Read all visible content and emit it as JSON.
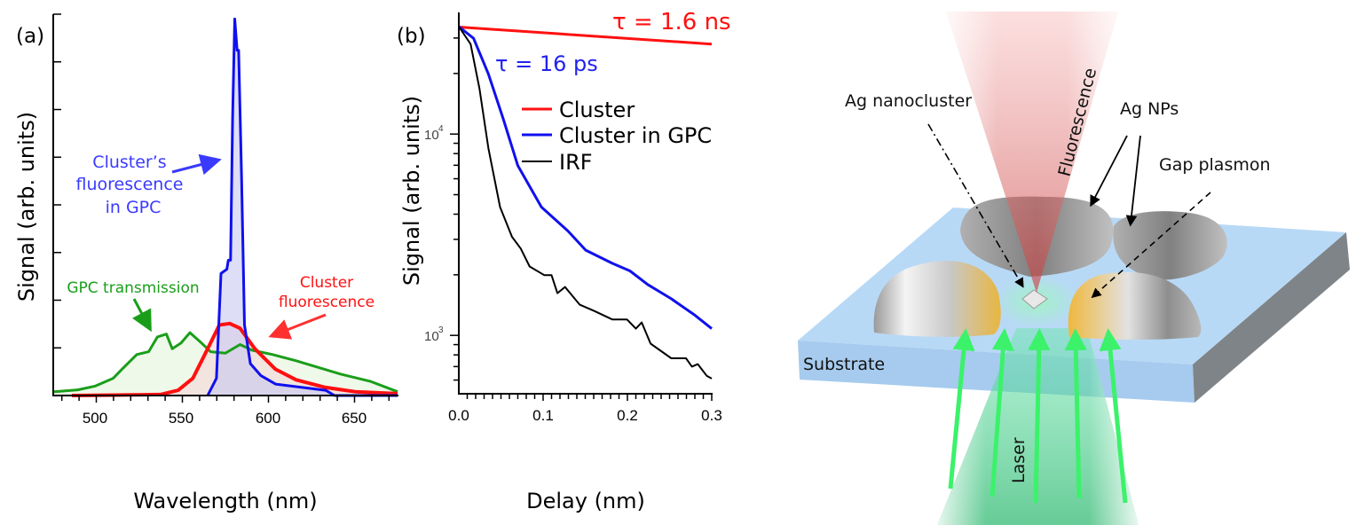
{
  "chart_data": [
    {
      "type": "area",
      "panel_label": "(a)",
      "xlabel": "Wavelength (nm)",
      "ylabel": "Signal (arb. units)",
      "xlim": [
        475,
        675
      ],
      "ylim": [
        0,
        8
      ],
      "x_ticks": [
        "500",
        "550",
        "600",
        "650"
      ],
      "y_tick_labels_shown": false,
      "grid": false,
      "series": [
        {
          "key": "gpc",
          "color": "#1a9e1a",
          "fill": "#e4f5dc",
          "x": [
            475.5,
            489.2,
            499.5,
            509.8,
            514.9,
            523.5,
            530.4,
            535.5,
            540.7,
            544.1,
            549.2,
            554.4,
            561.2,
            566.4,
            575,
            583.5,
            590.4,
            602.4,
            616.1,
            629.8,
            641.8,
            659,
            675
          ],
          "y": [
            0.08,
            0.12,
            0.2,
            0.36,
            0.55,
            0.86,
            0.92,
            1.23,
            1.29,
            0.98,
            1.1,
            1.32,
            1.1,
            0.92,
            0.89,
            1.07,
            0.95,
            0.86,
            0.73,
            0.58,
            0.45,
            0.3,
            0.08
          ]
        },
        {
          "key": "cluster",
          "color": "#ff1010",
          "fill": "#f3d6d6",
          "x": [
            485.8,
            537.2,
            547.5,
            556.1,
            564.7,
            571.5,
            577.5,
            583.5,
            592.1,
            604.1,
            616.1,
            633.2,
            650.4,
            675
          ],
          "y": [
            0,
            0.02,
            0.11,
            0.36,
            0.98,
            1.48,
            1.51,
            1.41,
            0.98,
            0.55,
            0.33,
            0.17,
            0.08,
            0.04
          ]
        },
        {
          "key": "gpc_fluor",
          "color": "#1010ee",
          "fill": "#c8c8f2",
          "x": [
            564.7,
            569.8,
            572.4,
            575.8,
            576.7,
            578,
            579.2,
            580.4,
            581.8,
            582.7,
            584.4,
            586.1,
            589.5,
            595.5,
            604.1,
            633.2,
            638.4,
            675
          ],
          "y": [
            0,
            0.36,
            2.56,
            2.65,
            2.84,
            2.84,
            5.82,
            7.9,
            7.24,
            7.24,
            4.58,
            1.48,
            0.67,
            0.42,
            0.24,
            0.11,
            0,
            0
          ]
        }
      ],
      "annotations": {
        "gpc_fluor": [
          "Cluster’s",
          "fluorescence",
          "in GPC"
        ],
        "gpc": "GPC transmission",
        "cluster": [
          "Cluster",
          "fluorescence"
        ]
      }
    },
    {
      "type": "line",
      "panel_label": "(b)",
      "xlabel": "Delay (nm)",
      "ylabel": "Signal (arb. units)",
      "xlim": [
        0,
        0.3
      ],
      "ylim": [
        513,
        39800
      ],
      "yscale": "log",
      "x_ticks": [
        "0.0",
        "0.1",
        "0.2",
        "0.3"
      ],
      "y_ticks": [
        {
          "base": "10",
          "exp": "3",
          "value": 1000
        },
        {
          "base": "10",
          "exp": "4",
          "value": 10000
        }
      ],
      "grid": false,
      "legend_position": "upper-right",
      "series": [
        {
          "key": "cluster",
          "name": "Cluster",
          "color": "#ff1010",
          "x": [
            0,
            0.3
          ],
          "y": [
            34000,
            28000
          ]
        },
        {
          "key": "gpc",
          "name": "Cluster in GPC",
          "color": "#1010ee",
          "x": [
            0,
            0.0175,
            0.035,
            0.0525,
            0.07,
            0.098,
            0.1295,
            0.1505,
            0.182,
            0.203,
            0.224,
            0.252,
            0.28,
            0.3
          ],
          "y": [
            34200,
            29900,
            19900,
            11970,
            6970,
            4340,
            3300,
            2650,
            2280,
            2090,
            1790,
            1520,
            1260,
            1080
          ]
        },
        {
          "key": "irf",
          "name": "IRF",
          "color": "#000000",
          "x": [
            0,
            0.014,
            0.0245,
            0.035,
            0.049,
            0.063,
            0.0735,
            0.084,
            0.1015,
            0.11,
            0.117,
            0.126,
            0.1435,
            0.161,
            0.182,
            0.1995,
            0.21,
            0.217,
            0.2275,
            0.252,
            0.2695,
            0.2765,
            0.2835,
            0.294,
            0.3
          ],
          "y": [
            34200,
            28000,
            16800,
            8530,
            4340,
            3090,
            2700,
            2200,
            1990,
            1990,
            1620,
            1740,
            1420,
            1320,
            1200,
            1200,
            1080,
            1160,
            910,
            770,
            770,
            700,
            720,
            630,
            610
          ]
        }
      ],
      "annotations": {
        "cluster_tau": "τ = 1.6 ns",
        "gpc_tau": "τ = 16 ps"
      }
    }
  ],
  "diagram": {
    "labels": {
      "nanocluster": "Ag nanocluster",
      "fluorescence": "Fluorescence",
      "nps": "Ag NPs",
      "gap": "Gap plasmon",
      "substrate": "Substrate",
      "laser": "Laser"
    },
    "colors": {
      "fluorescence": "#f7a0a0",
      "laser": "#3bf26a",
      "substrate": "#a9d0f2",
      "silver": "#a8a8a8",
      "gap": "#f3c04a"
    }
  }
}
